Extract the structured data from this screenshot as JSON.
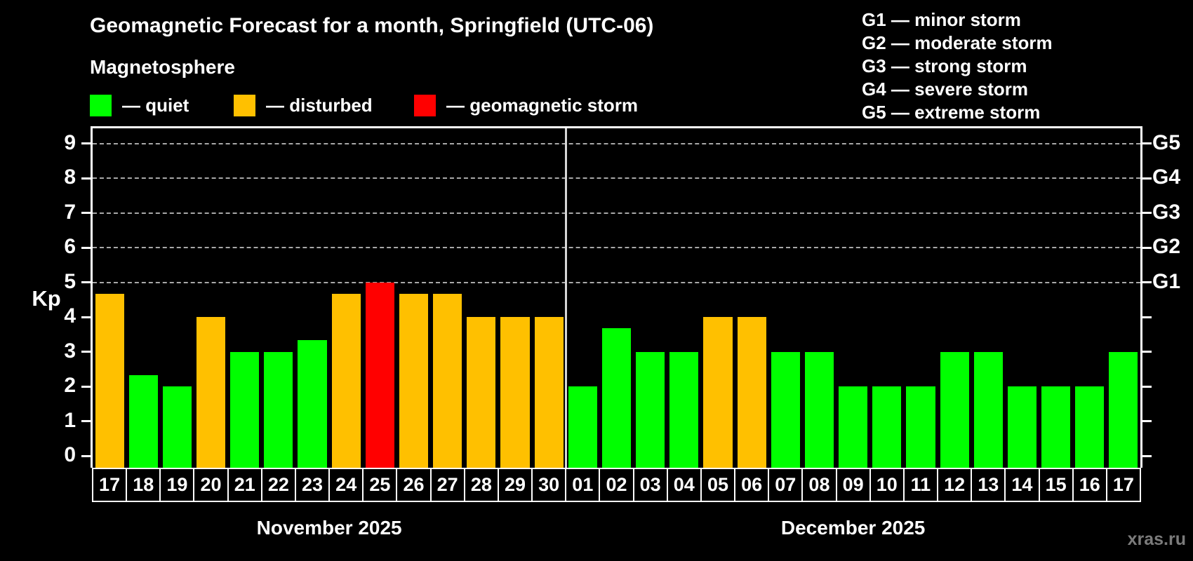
{
  "watermark": "xras.ru",
  "chart_data": {
    "type": "bar",
    "title": "Geomagnetic Forecast for a month, Springfield (UTC-06)",
    "subtitle": "Magnetosphere",
    "ylabel": "Kp",
    "ylim": [
      0,
      9
    ],
    "yticks": [
      0,
      1,
      2,
      3,
      4,
      5,
      6,
      7,
      8,
      9
    ],
    "grid": "dashed horizontal gridlines at Kp 5-9 only",
    "legend_position": "top-left",
    "legend": [
      {
        "status": "quiet",
        "label": "— quiet",
        "color": "#00ff00"
      },
      {
        "status": "disturbed",
        "label": "— disturbed",
        "color": "#ffc000"
      },
      {
        "status": "storm",
        "label": "— geomagnetic storm",
        "color": "#ff0000"
      }
    ],
    "g_scale_legend": [
      "G1 — minor storm",
      "G2 — moderate storm",
      "G3 — strong storm",
      "G4 — severe storm",
      "G5 — extreme storm"
    ],
    "right_axis_labels": [
      {
        "label": "G5",
        "kp": 9
      },
      {
        "label": "G4",
        "kp": 8
      },
      {
        "label": "G3",
        "kp": 7
      },
      {
        "label": "G2",
        "kp": 6
      },
      {
        "label": "G1",
        "kp": 5
      }
    ],
    "status_colors": {
      "quiet": "#00ff00",
      "disturbed": "#ffc000",
      "storm": "#ff0000"
    },
    "categories": [
      "17",
      "18",
      "19",
      "20",
      "21",
      "22",
      "23",
      "24",
      "25",
      "26",
      "27",
      "28",
      "29",
      "30",
      "01",
      "02",
      "03",
      "04",
      "05",
      "06",
      "07",
      "08",
      "09",
      "10",
      "11",
      "12",
      "13",
      "14",
      "15",
      "16",
      "17"
    ],
    "values": [
      4.67,
      2.33,
      2,
      4,
      3,
      3,
      3.33,
      4.67,
      5,
      4.67,
      4.67,
      4,
      4,
      4,
      2,
      3.67,
      3,
      3,
      4,
      4,
      3,
      3,
      2,
      2,
      2,
      3,
      3,
      2,
      2,
      2,
      3
    ],
    "statuses": [
      "disturbed",
      "quiet",
      "quiet",
      "disturbed",
      "quiet",
      "quiet",
      "quiet",
      "disturbed",
      "storm",
      "disturbed",
      "disturbed",
      "disturbed",
      "disturbed",
      "disturbed",
      "quiet",
      "quiet",
      "quiet",
      "quiet",
      "disturbed",
      "disturbed",
      "quiet",
      "quiet",
      "quiet",
      "quiet",
      "quiet",
      "quiet",
      "quiet",
      "quiet",
      "quiet",
      "quiet",
      "quiet"
    ],
    "months": [
      {
        "label": "November 2025",
        "days": [
          {
            "day": "17",
            "kp": 4.67,
            "status": "disturbed"
          },
          {
            "day": "18",
            "kp": 2.33,
            "status": "quiet"
          },
          {
            "day": "19",
            "kp": 2,
            "status": "quiet"
          },
          {
            "day": "20",
            "kp": 4,
            "status": "disturbed"
          },
          {
            "day": "21",
            "kp": 3,
            "status": "quiet"
          },
          {
            "day": "22",
            "kp": 3,
            "status": "quiet"
          },
          {
            "day": "23",
            "kp": 3.33,
            "status": "quiet"
          },
          {
            "day": "24",
            "kp": 4.67,
            "status": "disturbed"
          },
          {
            "day": "25",
            "kp": 5,
            "status": "storm"
          },
          {
            "day": "26",
            "kp": 4.67,
            "status": "disturbed"
          },
          {
            "day": "27",
            "kp": 4.67,
            "status": "disturbed"
          },
          {
            "day": "28",
            "kp": 4,
            "status": "disturbed"
          },
          {
            "day": "29",
            "kp": 4,
            "status": "disturbed"
          },
          {
            "day": "30",
            "kp": 4,
            "status": "disturbed"
          }
        ]
      },
      {
        "label": "December 2025",
        "days": [
          {
            "day": "01",
            "kp": 2,
            "status": "quiet"
          },
          {
            "day": "02",
            "kp": 3.67,
            "status": "quiet"
          },
          {
            "day": "03",
            "kp": 3,
            "status": "quiet"
          },
          {
            "day": "04",
            "kp": 3,
            "status": "quiet"
          },
          {
            "day": "05",
            "kp": 4,
            "status": "disturbed"
          },
          {
            "day": "06",
            "kp": 4,
            "status": "disturbed"
          },
          {
            "day": "07",
            "kp": 3,
            "status": "quiet"
          },
          {
            "day": "08",
            "kp": 3,
            "status": "quiet"
          },
          {
            "day": "09",
            "kp": 2,
            "status": "quiet"
          },
          {
            "day": "10",
            "kp": 2,
            "status": "quiet"
          },
          {
            "day": "11",
            "kp": 2,
            "status": "quiet"
          },
          {
            "day": "12",
            "kp": 3,
            "status": "quiet"
          },
          {
            "day": "13",
            "kp": 3,
            "status": "quiet"
          },
          {
            "day": "14",
            "kp": 2,
            "status": "quiet"
          },
          {
            "day": "15",
            "kp": 2,
            "status": "quiet"
          },
          {
            "day": "16",
            "kp": 2,
            "status": "quiet"
          },
          {
            "day": "17",
            "kp": 3,
            "status": "quiet"
          }
        ]
      }
    ]
  }
}
